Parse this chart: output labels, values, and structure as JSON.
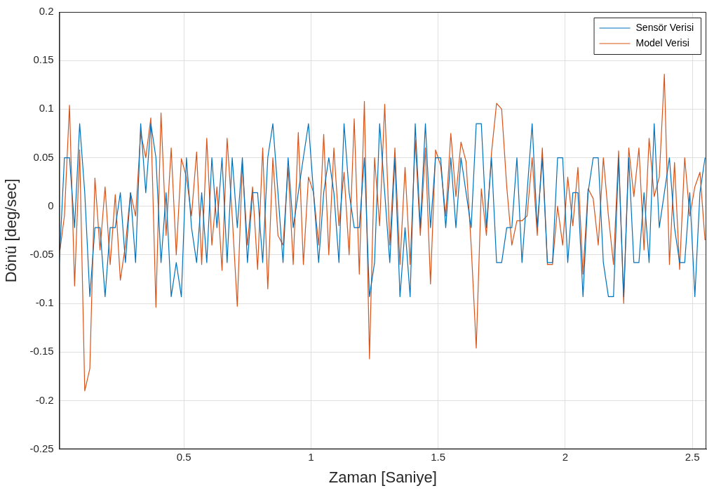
{
  "chart_data": {
    "type": "line",
    "xlabel": "Zaman [Saniye]",
    "ylabel": "Dönü [deg/sec]",
    "x": [
      0.01,
      0.03,
      0.05,
      0.07,
      0.09,
      0.11,
      0.13,
      0.15,
      0.17,
      0.19,
      0.21,
      0.23,
      0.25,
      0.27,
      0.29,
      0.31,
      0.33,
      0.35,
      0.37,
      0.39,
      0.41,
      0.43,
      0.45,
      0.47,
      0.49,
      0.51,
      0.53,
      0.55,
      0.57,
      0.59,
      0.61,
      0.63,
      0.65,
      0.67,
      0.69,
      0.71,
      0.73,
      0.75,
      0.77,
      0.79,
      0.81,
      0.83,
      0.85,
      0.87,
      0.89,
      0.91,
      0.93,
      0.95,
      0.97,
      0.99,
      1.01,
      1.03,
      1.05,
      1.07,
      1.09,
      1.11,
      1.13,
      1.15,
      1.17,
      1.19,
      1.21,
      1.23,
      1.25,
      1.27,
      1.29,
      1.31,
      1.33,
      1.35,
      1.37,
      1.39,
      1.41,
      1.43,
      1.45,
      1.47,
      1.49,
      1.51,
      1.53,
      1.55,
      1.57,
      1.59,
      1.61,
      1.63,
      1.65,
      1.67,
      1.69,
      1.71,
      1.73,
      1.75,
      1.77,
      1.79,
      1.81,
      1.83,
      1.85,
      1.87,
      1.89,
      1.91,
      1.93,
      1.95,
      1.97,
      1.99,
      2.01,
      2.03,
      2.05,
      2.07,
      2.09,
      2.11,
      2.13,
      2.15,
      2.17,
      2.19,
      2.21,
      2.23,
      2.25,
      2.27,
      2.29,
      2.31,
      2.33,
      2.35,
      2.37,
      2.39,
      2.41,
      2.43,
      2.45,
      2.47,
      2.49,
      2.51,
      2.53,
      2.55
    ],
    "series": [
      {
        "name": "Sensör Verisi",
        "color": "#0072bd",
        "values": [
          -0.058,
          0.05,
          0.05,
          -0.022,
          0.085,
          0.014,
          -0.093,
          -0.022,
          -0.022,
          -0.093,
          -0.022,
          -0.022,
          0.014,
          -0.058,
          0.014,
          -0.058,
          0.085,
          0.014,
          0.085,
          0.05,
          -0.058,
          0.014,
          -0.093,
          -0.058,
          -0.093,
          0.05,
          -0.022,
          -0.058,
          0.014,
          -0.058,
          0.05,
          -0.022,
          0.05,
          -0.058,
          0.05,
          -0.022,
          0.05,
          -0.058,
          0.014,
          0.014,
          -0.058,
          0.05,
          0.085,
          0.014,
          -0.058,
          0.05,
          -0.022,
          0.014,
          0.05,
          0.085,
          0.014,
          -0.058,
          0.014,
          0.05,
          0.014,
          -0.058,
          0.085,
          0.014,
          -0.022,
          -0.022,
          0.05,
          -0.093,
          -0.058,
          0.085,
          0.014,
          -0.058,
          0.05,
          -0.093,
          -0.022,
          -0.093,
          0.085,
          -0.022,
          0.085,
          -0.022,
          0.05,
          0.05,
          -0.022,
          0.05,
          -0.022,
          0.05,
          0.014,
          -0.022,
          0.085,
          0.085,
          -0.022,
          0.05,
          -0.058,
          -0.058,
          -0.022,
          -0.022,
          0.05,
          -0.058,
          0.014,
          0.085,
          -0.022,
          0.05,
          -0.058,
          -0.058,
          0.05,
          0.05,
          -0.058,
          0.014,
          0.014,
          -0.093,
          0.014,
          0.05,
          0.05,
          -0.058,
          -0.093,
          -0.093,
          0.05,
          -0.093,
          0.05,
          -0.058,
          -0.058,
          0.014,
          -0.058,
          0.085,
          -0.022,
          0.014,
          0.05,
          -0.022,
          -0.058,
          -0.058,
          0.014,
          -0.093,
          0.014,
          0.05
        ]
      },
      {
        "name": "Model Verisi",
        "color": "#d95319",
        "values": [
          -0.05,
          -0.01,
          0.104,
          -0.082,
          0.058,
          -0.19,
          -0.167,
          0.029,
          -0.045,
          0.02,
          -0.06,
          0.012,
          -0.076,
          -0.04,
          0.014,
          -0.01,
          0.076,
          0.05,
          0.091,
          -0.104,
          0.096,
          -0.03,
          0.06,
          -0.05,
          0.049,
          0.03,
          -0.01,
          0.056,
          -0.06,
          0.07,
          -0.04,
          0.02,
          -0.066,
          0.07,
          -0.01,
          -0.103,
          0.044,
          -0.04,
          0.02,
          -0.065,
          0.06,
          -0.085,
          0.05,
          -0.03,
          -0.04,
          0.04,
          -0.06,
          0.076,
          -0.06,
          0.03,
          0.014,
          -0.04,
          0.074,
          -0.05,
          0.06,
          -0.02,
          0.035,
          -0.05,
          0.09,
          -0.07,
          0.108,
          -0.157,
          0.05,
          -0.02,
          0.105,
          -0.04,
          0.06,
          -0.06,
          0.04,
          -0.06,
          0.068,
          -0.03,
          0.06,
          -0.08,
          0.058,
          0.042,
          -0.01,
          0.075,
          0.01,
          0.066,
          0.046,
          -0.04,
          -0.146,
          0.018,
          -0.03,
          0.055,
          0.106,
          0.1,
          0.02,
          -0.04,
          -0.015,
          -0.015,
          -0.01,
          0.05,
          -0.03,
          0.06,
          -0.06,
          -0.06,
          0,
          -0.04,
          0.03,
          -0.02,
          0.04,
          -0.07,
          0.018,
          0.008,
          -0.04,
          0.05,
          -0.01,
          -0.06,
          0.057,
          -0.1,
          0.06,
          0.01,
          0.06,
          -0.045,
          0.07,
          0.01,
          0.03,
          0.136,
          -0.06,
          0.045,
          -0.065,
          0.05,
          -0.01,
          0.02,
          0.035,
          -0.035
        ]
      }
    ],
    "xlim": [
      0.01,
      2.555
    ],
    "xticks": [
      0.5,
      1,
      1.5,
      2,
      2.5
    ],
    "ylim": [
      -0.25,
      0.2
    ],
    "yticks": [
      -0.25,
      -0.2,
      -0.15,
      -0.1,
      -0.05,
      0,
      0.05,
      0.1,
      0.15,
      0.2
    ],
    "grid": true,
    "legend": "top right"
  }
}
